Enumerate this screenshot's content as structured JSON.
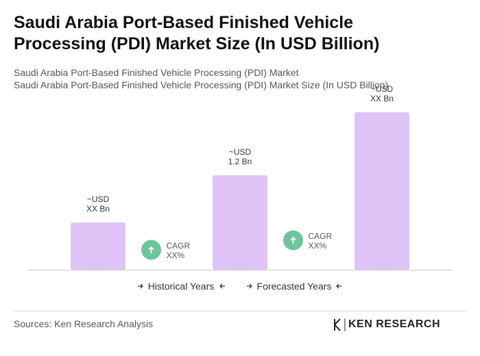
{
  "chart_data": {
    "type": "bar",
    "title": "Saudi Arabia Port-Based Finished Vehicle Processing (PDI) Market Size (In USD Billion)",
    "subtitle": [
      "Saudi Arabia Port-Based Finished Vehicle Processing (PDI) Market",
      "Saudi Arabia Port-Based Finished Vehicle Processing (PDI) Market Size (In USD Billion)"
    ],
    "categories": [
      null,
      null,
      null
    ],
    "values": [
      0.6,
      1.2,
      2.0
    ],
    "value_labels": [
      "~USD\nXX Bn",
      "~USD\n1.2 Bn",
      "~USD\nXX Bn"
    ],
    "color": "#dfc3f7",
    "annotations": [
      "CAGR\nXX%",
      "CAGR\nXX%"
    ],
    "annotation_color": "#6cc59c",
    "legend": [
      "Historical Years",
      "Forecasted Years"
    ],
    "source": "Sources: Ken Research Analysis",
    "logo": "KEN RESEARCH"
  }
}
